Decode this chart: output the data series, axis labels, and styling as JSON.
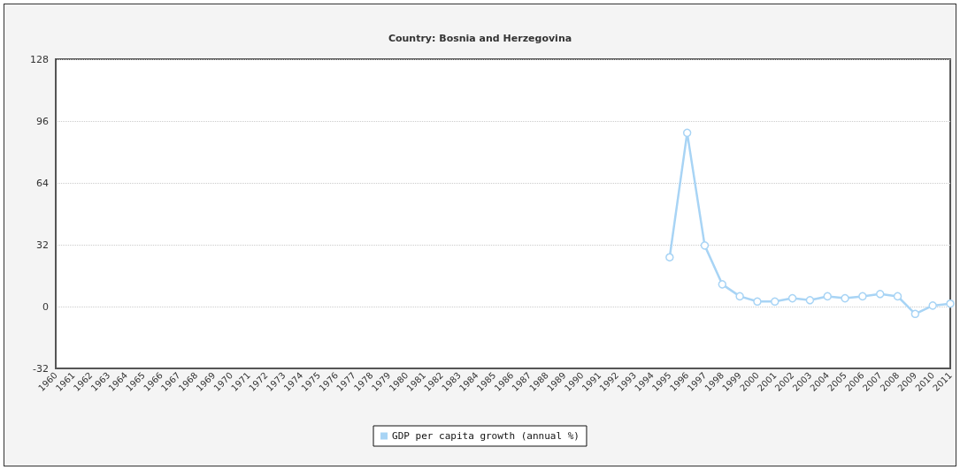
{
  "chart_data": {
    "type": "line",
    "title": "Country: Bosnia and Herzegovina",
    "categories": [
      "1960",
      "1961",
      "1962",
      "1963",
      "1964",
      "1965",
      "1966",
      "1967",
      "1968",
      "1969",
      "1970",
      "1971",
      "1972",
      "1973",
      "1974",
      "1975",
      "1976",
      "1977",
      "1978",
      "1979",
      "1980",
      "1981",
      "1982",
      "1983",
      "1984",
      "1985",
      "1986",
      "1987",
      "1988",
      "1989",
      "1990",
      "1991",
      "1992",
      "1993",
      "1994",
      "1995",
      "1996",
      "1997",
      "1998",
      "1999",
      "2000",
      "2001",
      "2002",
      "2003",
      "2004",
      "2005",
      "2006",
      "2007",
      "2008",
      "2009",
      "2010",
      "2011"
    ],
    "series": [
      {
        "name": "GDP per capita growth (annual %)",
        "color": "#a8d4f5",
        "values": [
          null,
          null,
          null,
          null,
          null,
          null,
          null,
          null,
          null,
          null,
          null,
          null,
          null,
          null,
          null,
          null,
          null,
          null,
          null,
          null,
          null,
          null,
          null,
          null,
          null,
          null,
          null,
          null,
          null,
          null,
          null,
          null,
          null,
          null,
          null,
          25.5,
          89.9,
          31.6,
          11.5,
          5.3,
          2.6,
          2.6,
          4.3,
          3.3,
          5.3,
          4.3,
          5.3,
          6.5,
          5.3,
          -3.8,
          0.5,
          1.5
        ]
      }
    ],
    "ylim": [
      -32,
      128
    ],
    "yticks": [
      -32,
      0,
      32,
      64,
      96,
      128
    ],
    "grid": "y",
    "legend": "bottom",
    "marker": "circle",
    "line_style": "solid"
  }
}
